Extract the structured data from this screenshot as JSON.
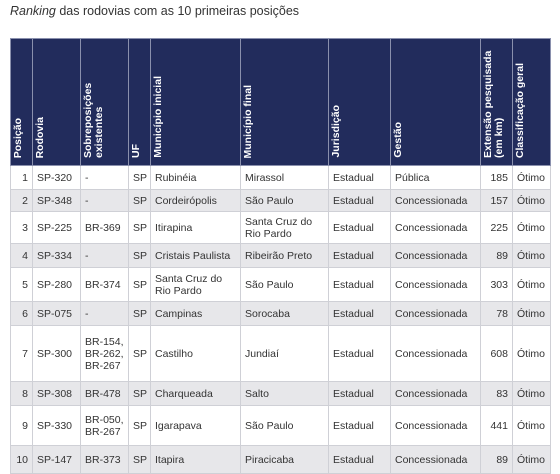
{
  "caption": {
    "emphasis": "Ranking",
    "rest": "das rodovias com as 10 primeiras posições"
  },
  "table": {
    "columns": [
      "Posição",
      "Rodovia",
      "Sobreposições existentes",
      "UF",
      "Município inicial",
      "Município final",
      "Jurisdição",
      "Gestão",
      "Extensão pesquisada (em km)",
      "Classificação geral"
    ],
    "rows": [
      [
        1,
        "SP-320",
        "-",
        "SP",
        "Rubinéia",
        "Mirassol",
        "Estadual",
        "Pública",
        185,
        "Ótimo"
      ],
      [
        2,
        "SP-348",
        "-",
        "SP",
        "Cordeirópolis",
        "São Paulo",
        "Estadual",
        "Concessionada",
        157,
        "Ótimo"
      ],
      [
        3,
        "SP-225",
        "BR-369",
        "SP",
        "Itirapina",
        "Santa Cruz do Rio Pardo",
        "Estadual",
        "Concessionada",
        225,
        "Ótimo"
      ],
      [
        4,
        "SP-334",
        "-",
        "SP",
        "Cristais Paulista",
        "Ribeirão Preto",
        "Estadual",
        "Concessionada",
        89,
        "Ótimo"
      ],
      [
        5,
        "SP-280",
        "BR-374",
        "SP",
        "Santa Cruz do Rio Pardo",
        "São Paulo",
        "Estadual",
        "Concessionada",
        303,
        "Ótimo"
      ],
      [
        6,
        "SP-075",
        "-",
        "SP",
        "Campinas",
        "Sorocaba",
        "Estadual",
        "Concessionada",
        78,
        "Ótimo"
      ],
      [
        7,
        "SP-300",
        "BR-154, BR-262, BR-267",
        "SP",
        "Castilho",
        "Jundiaí",
        "Estadual",
        "Concessionada",
        608,
        "Ótimo"
      ],
      [
        8,
        "SP-308",
        "BR-478",
        "SP",
        "Charqueada",
        "Salto",
        "Estadual",
        "Concessionada",
        83,
        "Ótimo"
      ],
      [
        9,
        "SP-330",
        "BR-050, BR-267",
        "SP",
        "Igarapava",
        "São Paulo",
        "Estadual",
        "Concessionada",
        441,
        "Ótimo"
      ],
      [
        10,
        "SP-147",
        "BR-373",
        "SP",
        "Itapira",
        "Piracicaba",
        "Estadual",
        "Concessionada",
        89,
        "Ótimo"
      ]
    ]
  }
}
